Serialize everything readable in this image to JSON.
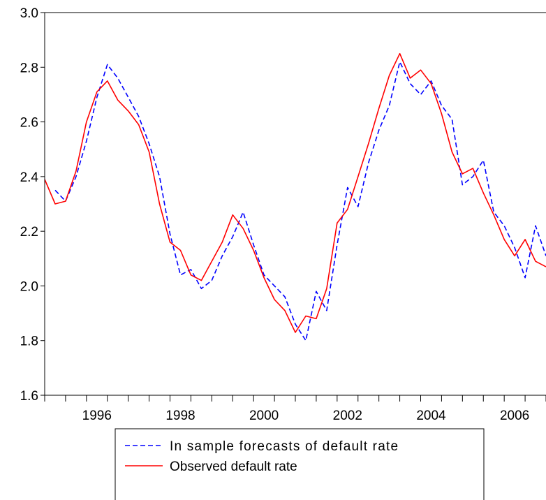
{
  "chart_data": {
    "type": "line",
    "title": "",
    "xlabel": "",
    "ylabel": "",
    "xlim": [
      1994.75,
      2006.75
    ],
    "ylim": [
      1.6,
      3.0
    ],
    "y_ticks": [
      "1.6",
      "1.8",
      "2.0",
      "2.2",
      "2.4",
      "2.6",
      "2.8",
      "3.0"
    ],
    "x_ticks": [
      "1996",
      "1998",
      "2000",
      "2002",
      "2004",
      "2006"
    ],
    "grid": false,
    "legend_position": "bottom",
    "series": [
      {
        "name": "In sample forecasts of default rate",
        "color": "#0000ff",
        "style": "dashed",
        "x": [
          1995.0,
          1995.25,
          1995.5,
          1995.75,
          1996.0,
          1996.25,
          1996.5,
          1996.75,
          1997.0,
          1997.25,
          1997.5,
          1997.75,
          1998.0,
          1998.25,
          1998.5,
          1998.75,
          1999.0,
          1999.25,
          1999.5,
          1999.75,
          2000.0,
          2000.25,
          2000.5,
          2000.75,
          2001.0,
          2001.25,
          2001.5,
          2001.75,
          2002.0,
          2002.25,
          2002.5,
          2002.75,
          2003.0,
          2003.25,
          2003.5,
          2003.75,
          2004.0,
          2004.25,
          2004.5,
          2004.75,
          2005.0,
          2005.25,
          2005.5,
          2005.75,
          2006.0,
          2006.25,
          2006.5,
          2006.75
        ],
        "values": [
          2.35,
          2.31,
          2.4,
          2.53,
          2.69,
          2.81,
          2.76,
          2.69,
          2.62,
          2.52,
          2.4,
          2.19,
          2.04,
          2.06,
          1.99,
          2.02,
          2.11,
          2.18,
          2.27,
          2.15,
          2.04,
          2.0,
          1.96,
          1.86,
          1.8,
          1.98,
          1.91,
          2.15,
          2.36,
          2.29,
          2.45,
          2.57,
          2.66,
          2.82,
          2.74,
          2.7,
          2.75,
          2.66,
          2.61,
          2.37,
          2.4,
          2.46,
          2.27,
          2.22,
          2.14,
          2.03,
          2.22,
          2.11
        ]
      },
      {
        "name": "Observed default rate",
        "color": "#ff0000",
        "style": "solid",
        "x": [
          1994.75,
          1995.0,
          1995.25,
          1995.5,
          1995.75,
          1996.0,
          1996.25,
          1996.5,
          1996.75,
          1997.0,
          1997.25,
          1997.5,
          1997.75,
          1998.0,
          1998.25,
          1998.5,
          1998.75,
          1999.0,
          1999.25,
          1999.5,
          1999.75,
          2000.0,
          2000.25,
          2000.5,
          2000.75,
          2001.0,
          2001.25,
          2001.5,
          2001.75,
          2002.0,
          2002.25,
          2002.5,
          2002.75,
          2003.0,
          2003.25,
          2003.5,
          2003.75,
          2004.0,
          2004.25,
          2004.5,
          2004.75,
          2005.0,
          2005.25,
          2005.5,
          2005.75,
          2006.0,
          2006.25,
          2006.5,
          2006.75
        ],
        "values": [
          2.39,
          2.3,
          2.31,
          2.42,
          2.6,
          2.71,
          2.75,
          2.68,
          2.64,
          2.59,
          2.49,
          2.3,
          2.16,
          2.13,
          2.04,
          2.02,
          2.09,
          2.16,
          2.26,
          2.21,
          2.13,
          2.03,
          1.95,
          1.91,
          1.83,
          1.89,
          1.88,
          1.99,
          2.23,
          2.28,
          2.4,
          2.52,
          2.65,
          2.77,
          2.85,
          2.76,
          2.79,
          2.74,
          2.63,
          2.49,
          2.41,
          2.43,
          2.34,
          2.26,
          2.17,
          2.11,
          2.17,
          2.09,
          2.07
        ]
      }
    ]
  }
}
